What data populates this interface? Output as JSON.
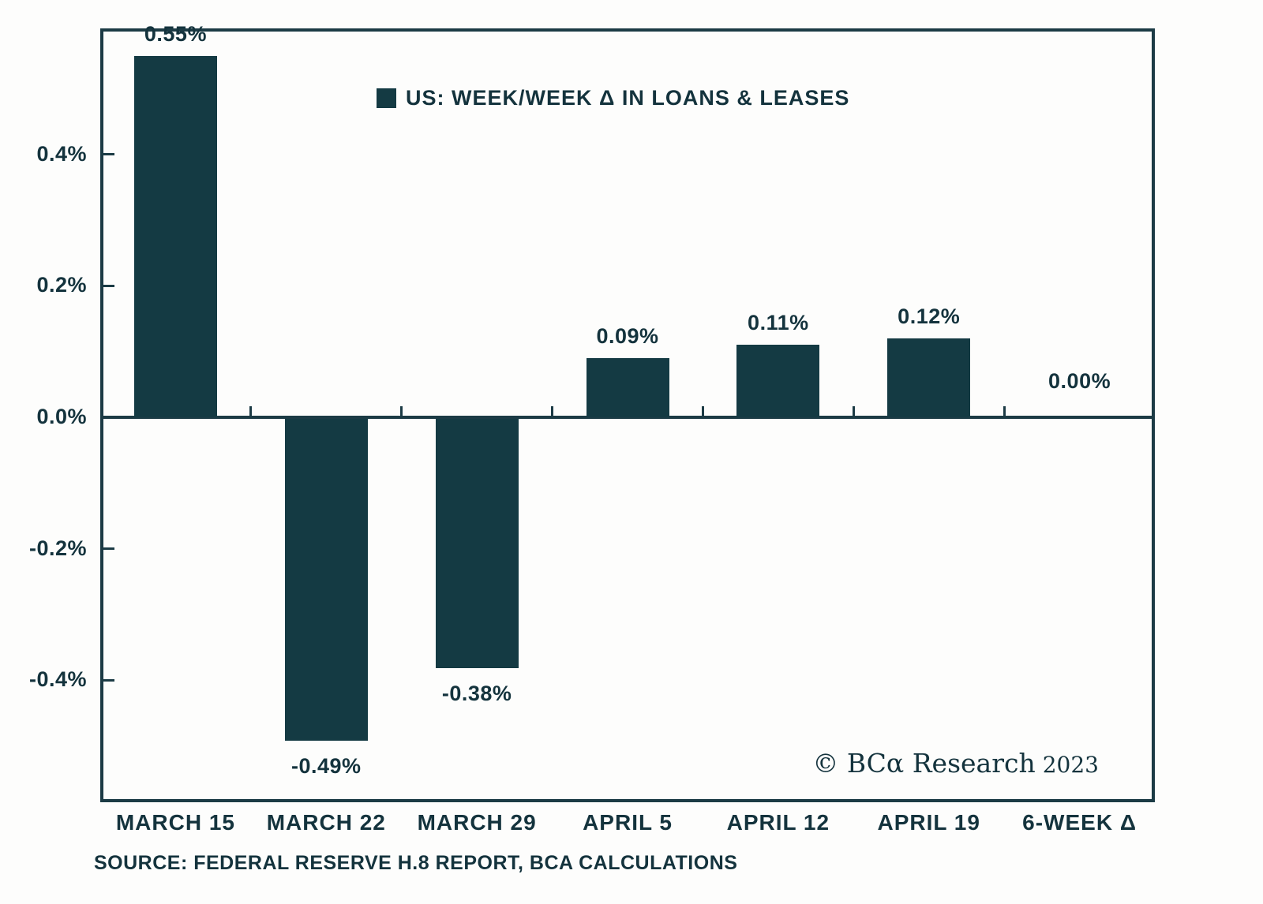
{
  "chart_data": {
    "type": "bar",
    "title": "US: WEEK/WEEK Δ IN LOANS & LEASES",
    "categories": [
      "MARCH 15",
      "MARCH 22",
      "MARCH 29",
      "APRIL 5",
      "APRIL 12",
      "APRIL 19",
      "6-WEEK Δ"
    ],
    "values": [
      0.55,
      -0.49,
      -0.38,
      0.09,
      0.11,
      0.12,
      0.0
    ],
    "bar_labels": [
      "0.55%",
      "-0.49%",
      "-0.38%",
      "0.09%",
      "0.11%",
      "0.12%",
      "0.00%"
    ],
    "ytick_values": [
      0.4,
      0.2,
      0.0,
      -0.2,
      -0.4
    ],
    "ytick_labels": [
      "0.4%",
      "0.2%",
      "0.0%",
      "-0.2%",
      "-0.4%"
    ],
    "ylim": [
      -0.586,
      0.592
    ],
    "xlabel": "",
    "ylabel": "",
    "grid": false,
    "legend": {
      "label": "US: WEEK/WEEK Δ IN LOANS & LEASES",
      "position": "top-center"
    }
  },
  "colors": {
    "bar": "#143a43",
    "text": "#14333d",
    "axis": "#1c3b45",
    "background": "#fdfdfc"
  },
  "footer": {
    "source": "SOURCE: FEDERAL RESERVE H.8 REPORT, BCA CALCULATIONS",
    "copyright_brand": "© BCα Research",
    "copyright_year": "2023"
  }
}
